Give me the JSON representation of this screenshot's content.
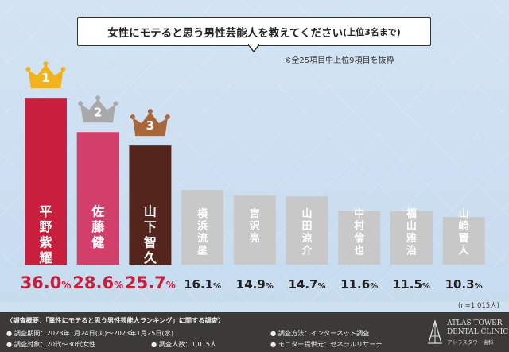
{
  "title": {
    "main": "女性にモテると思う男性芸能人を教えてください",
    "sub": "(上位3名まで)"
  },
  "note": "※全25項目中上位9項目を抜粋",
  "sample_size": "(n=1,015人)",
  "colors": {
    "rank1": "#c8203c",
    "rank2": "#d23f6a",
    "rank3": "#54251d",
    "others": "#c8c8c8",
    "gold": "#f2b21c",
    "silver": "#a9a9a9",
    "bronze": "#a8673b",
    "value_red": "#c8203c",
    "value_dark": "#222222"
  },
  "chart_data": {
    "type": "bar",
    "categories": [
      "平野紫耀",
      "佐藤健",
      "山下智久",
      "横浜流星",
      "吉沢亮",
      "山田涼介",
      "中村倫也",
      "福山雅治",
      "山崎賢人"
    ],
    "values": [
      36.0,
      28.6,
      25.7,
      16.1,
      14.9,
      14.7,
      11.6,
      11.5,
      10.3
    ],
    "value_labels": [
      "36.0%",
      "28.6%",
      "25.7%",
      "16.1%",
      "14.9%",
      "14.7%",
      "11.6%",
      "11.5%",
      "10.3%"
    ],
    "ranks": [
      "1",
      "2",
      "3"
    ],
    "unit": "%",
    "title": "女性にモテると思う男性芸能人を教えてください(上位3名まで)",
    "xlabel": "",
    "ylabel": "",
    "grid": false
  },
  "footer": {
    "heading": "〈調査概要：「異性にモテると思う男性芸能人ランキング」に関する調査〉",
    "period": "● 調査期間：2023年1月24日(火)〜2023年1月25日(水)",
    "method": "● 調査方法：インターネット調査",
    "target": "● 調査対象：20代〜30代女性",
    "count": "● 調査人数：1,015人",
    "provider": "● モニター提供元：ゼネラルリサーチ",
    "logo_line1": "ATLAS TOWER",
    "logo_line2": "DENTAL CLINIC",
    "logo_line3": "アトラスタワー歯科"
  }
}
